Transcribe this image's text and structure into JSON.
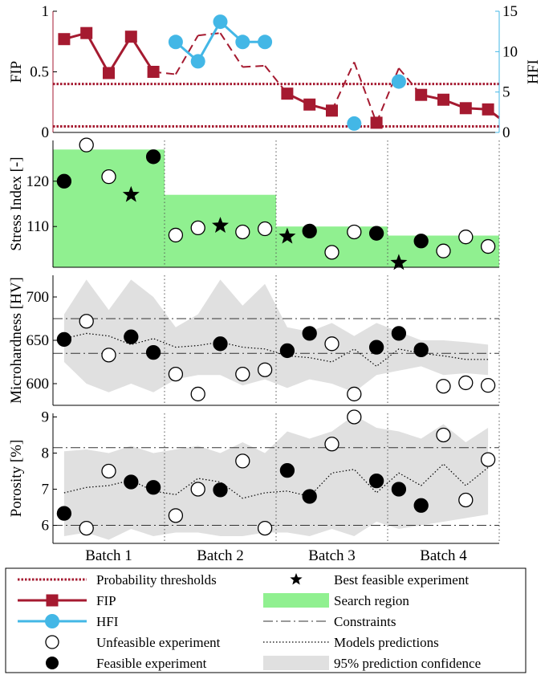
{
  "chart_data": {
    "type": "multi-panel",
    "batches": [
      "Batch 1",
      "Batch 2",
      "Batch 3",
      "Batch 4"
    ],
    "colors": {
      "fip": "#a51a30",
      "hfi": "#43b7e6",
      "search_region": "#90f090",
      "confidence": "#e0e0e0"
    },
    "panels": [
      {
        "id": "fip-hfi",
        "ylabel_left": "FIP",
        "ylabel_right": "HFI",
        "ylim": [
          0,
          1
        ],
        "yticks": [
          "0",
          "0.5",
          "1"
        ],
        "ylim_right": [
          0,
          15
        ],
        "yticks_right": [
          "0",
          "5",
          "10",
          "15"
        ],
        "thresholds": [
          0.05,
          0.4
        ],
        "fip": {
          "x": [
            1,
            2,
            3,
            4,
            5,
            6,
            7,
            8,
            9,
            10,
            11,
            12,
            13,
            14,
            15,
            16,
            17,
            18,
            19,
            20
          ],
          "y": [
            0.77,
            0.82,
            0.49,
            0.79,
            0.5,
            0.48,
            0.8,
            0.82,
            0.54,
            0.55,
            0.32,
            0.23,
            0.18,
            0.58,
            0.08,
            0.53,
            0.31,
            0.27,
            0.2,
            0.19
          ],
          "marked": [
            true,
            true,
            true,
            true,
            true,
            false,
            false,
            false,
            false,
            false,
            true,
            true,
            true,
            false,
            true,
            false,
            true,
            true,
            true,
            true
          ],
          "solid": [
            true,
            true,
            true,
            true,
            true,
            false,
            false,
            false,
            false,
            false,
            true,
            true,
            true,
            false,
            true,
            false,
            true,
            true,
            true,
            true
          ],
          "tail_y": 0.12
        },
        "hfi": {
          "segments": [
            {
              "x": [
                6,
                7,
                8,
                9,
                10
              ],
              "y": [
                11.2,
                8.8,
                13.7,
                11.2,
                11.2
              ]
            },
            {
              "x": [
                14
              ],
              "y": [
                1.1
              ]
            },
            {
              "x": [
                16
              ],
              "y": [
                6.3
              ]
            }
          ]
        }
      },
      {
        "id": "stress",
        "ylabel": "Stress Index [-]",
        "ylim": [
          101,
          129
        ],
        "yticks": [
          110,
          120
        ],
        "search_regions": [
          {
            "x0": 0.5,
            "x1": 5.5,
            "top": 127
          },
          {
            "x0": 5.5,
            "x1": 10.5,
            "top": 117
          },
          {
            "x0": 10.5,
            "x1": 15.5,
            "top": 110
          },
          {
            "x0": 15.5,
            "x1": 20.5,
            "top": 108
          }
        ],
        "points": [
          {
            "x": 1,
            "y": 120,
            "kind": "feasible"
          },
          {
            "x": 2,
            "y": 128,
            "kind": "unfeasible"
          },
          {
            "x": 3,
            "y": 121,
            "kind": "unfeasible"
          },
          {
            "x": 4,
            "y": 117,
            "kind": "best"
          },
          {
            "x": 5,
            "y": 125.4,
            "kind": "feasible"
          },
          {
            "x": 6,
            "y": 108.1,
            "kind": "unfeasible"
          },
          {
            "x": 7,
            "y": 109.7,
            "kind": "unfeasible"
          },
          {
            "x": 8,
            "y": 110.2,
            "kind": "best"
          },
          {
            "x": 9,
            "y": 108.8,
            "kind": "unfeasible"
          },
          {
            "x": 10,
            "y": 109.5,
            "kind": "unfeasible"
          },
          {
            "x": 11,
            "y": 107.8,
            "kind": "best"
          },
          {
            "x": 12,
            "y": 109,
            "kind": "feasible"
          },
          {
            "x": 13,
            "y": 104.3,
            "kind": "unfeasible"
          },
          {
            "x": 14,
            "y": 108.8,
            "kind": "unfeasible"
          },
          {
            "x": 15,
            "y": 108.5,
            "kind": "feasible"
          },
          {
            "x": 16,
            "y": 102,
            "kind": "best"
          },
          {
            "x": 17,
            "y": 106.8,
            "kind": "feasible"
          },
          {
            "x": 18,
            "y": 104.6,
            "kind": "unfeasible"
          },
          {
            "x": 19,
            "y": 107.7,
            "kind": "unfeasible"
          },
          {
            "x": 20,
            "y": 105.6,
            "kind": "unfeasible"
          }
        ]
      },
      {
        "id": "microhardness",
        "ylabel": "Microhardness [HV]",
        "ylim": [
          575,
          725
        ],
        "yticks": [
          600,
          650,
          700
        ],
        "constraints": [
          635,
          675
        ],
        "band_upper": [
          680,
          720,
          685,
          720,
          700,
          665,
          680,
          720,
          690,
          715,
          665,
          660,
          670,
          655,
          670,
          660,
          650,
          650,
          648,
          645
        ],
        "band_lower": [
          625,
          600,
          590,
          600,
          590,
          605,
          610,
          610,
          598,
          605,
          595,
          605,
          600,
          590,
          610,
          615,
          620,
          610,
          612,
          610
        ],
        "prediction": [
          652,
          658,
          655,
          645,
          652,
          642,
          644,
          648,
          642,
          640,
          632,
          630,
          625,
          640,
          620,
          640,
          635,
          632,
          628,
          628
        ],
        "points": [
          {
            "x": 1,
            "y": 651,
            "kind": "feasible"
          },
          {
            "x": 2,
            "y": 672,
            "kind": "unfeasible"
          },
          {
            "x": 3,
            "y": 633,
            "kind": "unfeasible"
          },
          {
            "x": 4,
            "y": 654,
            "kind": "feasible"
          },
          {
            "x": 5,
            "y": 636,
            "kind": "feasible"
          },
          {
            "x": 6,
            "y": 611,
            "kind": "unfeasible"
          },
          {
            "x": 7,
            "y": 588,
            "kind": "unfeasible"
          },
          {
            "x": 8,
            "y": 646,
            "kind": "feasible"
          },
          {
            "x": 9,
            "y": 611,
            "kind": "unfeasible"
          },
          {
            "x": 10,
            "y": 616,
            "kind": "unfeasible"
          },
          {
            "x": 11,
            "y": 638,
            "kind": "feasible"
          },
          {
            "x": 12,
            "y": 658,
            "kind": "feasible"
          },
          {
            "x": 13,
            "y": 646,
            "kind": "unfeasible"
          },
          {
            "x": 14,
            "y": 588,
            "kind": "unfeasible"
          },
          {
            "x": 15,
            "y": 642,
            "kind": "feasible"
          },
          {
            "x": 16,
            "y": 658,
            "kind": "feasible"
          },
          {
            "x": 17,
            "y": 639,
            "kind": "feasible"
          },
          {
            "x": 18,
            "y": 597,
            "kind": "unfeasible"
          },
          {
            "x": 19,
            "y": 601,
            "kind": "unfeasible"
          },
          {
            "x": 20,
            "y": 598,
            "kind": "unfeasible"
          }
        ]
      },
      {
        "id": "porosity",
        "ylabel": "Porosity [%]",
        "ylim": [
          5.5,
          9.1
        ],
        "yticks": [
          6,
          7,
          8,
          9
        ],
        "constraints": [
          6,
          8.15
        ],
        "band_upper": [
          8.05,
          8.1,
          8.0,
          8.2,
          8.0,
          8.1,
          8.2,
          8.0,
          8.3,
          8.0,
          8.6,
          8.4,
          8.6,
          9.05,
          8.7,
          8.6,
          8.4,
          8.8,
          8.3,
          8.7
        ],
        "band_lower": [
          5.7,
          5.8,
          5.6,
          5.9,
          5.7,
          5.8,
          5.8,
          5.7,
          5.7,
          5.8,
          5.8,
          5.7,
          5.9,
          5.7,
          6.1,
          5.9,
          6.0,
          6.1,
          6.2,
          6.3
        ],
        "prediction": [
          6.9,
          7.05,
          7.1,
          7.25,
          6.95,
          6.85,
          7.3,
          7.2,
          6.75,
          6.9,
          6.95,
          6.8,
          7.45,
          7.55,
          6.9,
          7.45,
          7.1,
          7.7,
          7.1,
          7.6
        ],
        "points": [
          {
            "x": 1,
            "y": 6.33,
            "kind": "feasible"
          },
          {
            "x": 2,
            "y": 5.92,
            "kind": "unfeasible"
          },
          {
            "x": 3,
            "y": 7.5,
            "kind": "unfeasible"
          },
          {
            "x": 4,
            "y": 7.2,
            "kind": "feasible"
          },
          {
            "x": 5,
            "y": 7.05,
            "kind": "feasible"
          },
          {
            "x": 6,
            "y": 6.27,
            "kind": "unfeasible"
          },
          {
            "x": 7,
            "y": 7.0,
            "kind": "unfeasible"
          },
          {
            "x": 8,
            "y": 6.98,
            "kind": "feasible"
          },
          {
            "x": 9,
            "y": 7.78,
            "kind": "unfeasible"
          },
          {
            "x": 10,
            "y": 5.92,
            "kind": "unfeasible"
          },
          {
            "x": 11,
            "y": 7.52,
            "kind": "feasible"
          },
          {
            "x": 12,
            "y": 6.8,
            "kind": "feasible"
          },
          {
            "x": 13,
            "y": 8.25,
            "kind": "unfeasible"
          },
          {
            "x": 14,
            "y": 9.0,
            "kind": "unfeasible"
          },
          {
            "x": 15,
            "y": 7.23,
            "kind": "feasible"
          },
          {
            "x": 16,
            "y": 7.0,
            "kind": "feasible"
          },
          {
            "x": 17,
            "y": 6.55,
            "kind": "feasible"
          },
          {
            "x": 18,
            "y": 8.5,
            "kind": "unfeasible"
          },
          {
            "x": 19,
            "y": 6.7,
            "kind": "unfeasible"
          },
          {
            "x": 20,
            "y": 7.82,
            "kind": "unfeasible"
          }
        ]
      }
    ],
    "legend": {
      "left": [
        {
          "label": "Probability thresholds",
          "symbol": "threshold"
        },
        {
          "label": "FIP",
          "symbol": "fip"
        },
        {
          "label": "HFI",
          "symbol": "hfi"
        },
        {
          "label": "Unfeasible experiment",
          "symbol": "open-circle"
        },
        {
          "label": "Feasible experiment",
          "symbol": "filled-circle"
        }
      ],
      "right": [
        {
          "label": "Best feasible experiment",
          "symbol": "star"
        },
        {
          "label": "Search region",
          "symbol": "search-region"
        },
        {
          "label": "Constraints",
          "symbol": "constraint"
        },
        {
          "label": "Models predictions",
          "symbol": "prediction"
        },
        {
          "label": "95% prediction confidence",
          "symbol": "confidence"
        }
      ]
    }
  }
}
